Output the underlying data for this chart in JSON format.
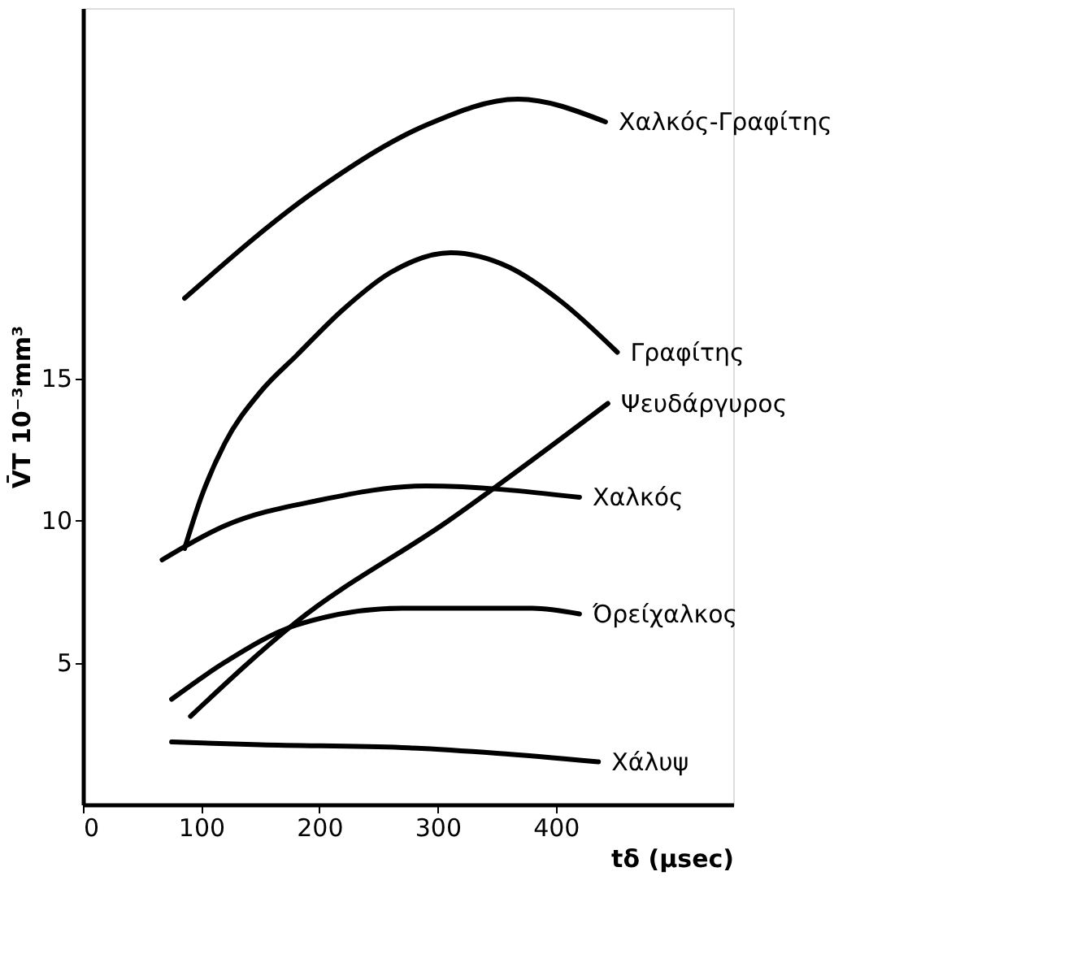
{
  "chart_data": {
    "type": "line",
    "xlabel": "tδ (μsec)",
    "ylabel": "V̄T 10⁻³mm³",
    "xlim": [
      0,
      550
    ],
    "ylim": [
      0,
      28
    ],
    "xticks": [
      0,
      100,
      200,
      300,
      400
    ],
    "yticks": [
      5,
      10,
      15
    ],
    "grid": false,
    "marker": "none",
    "line_style": "solid",
    "series": [
      {
        "name": "Χαλκός-Γραφίτης",
        "color": "#000000",
        "x": [
          86,
          201,
          291,
          368,
          442
        ],
        "values": [
          17.8,
          21.7,
          23.9,
          24.8,
          24.0
        ]
      },
      {
        "name": "Γραφίτης",
        "color": "#000000",
        "x": [
          86,
          100,
          120,
          150,
          181,
          220,
          260,
          311,
          360,
          404,
          452
        ],
        "values": [
          9.0,
          10.8,
          12.7,
          14.5,
          15.8,
          17.4,
          18.7,
          19.4,
          18.9,
          17.7,
          15.9
        ]
      },
      {
        "name": "Ψευδάργυρος",
        "color": "#000000",
        "x": [
          91,
          180,
          310,
          444
        ],
        "values": [
          3.1,
          6.4,
          10.0,
          14.1
        ]
      },
      {
        "name": "Χαλκός",
        "color": "#000000",
        "x": [
          67,
          120,
          200,
          290,
          420
        ],
        "values": [
          8.6,
          9.8,
          10.7,
          11.2,
          10.8
        ]
      },
      {
        "name": "Όρείχαλκος",
        "color": "#000000",
        "x": [
          75,
          120,
          180,
          270,
          380,
          420
        ],
        "values": [
          3.7,
          5.0,
          6.3,
          6.9,
          6.9,
          6.7
        ]
      },
      {
        "name": "Χάλυψ",
        "color": "#000000",
        "x": [
          75,
          150,
          270,
          350,
          436
        ],
        "values": [
          2.2,
          2.1,
          2.0,
          1.8,
          1.5
        ]
      }
    ]
  }
}
